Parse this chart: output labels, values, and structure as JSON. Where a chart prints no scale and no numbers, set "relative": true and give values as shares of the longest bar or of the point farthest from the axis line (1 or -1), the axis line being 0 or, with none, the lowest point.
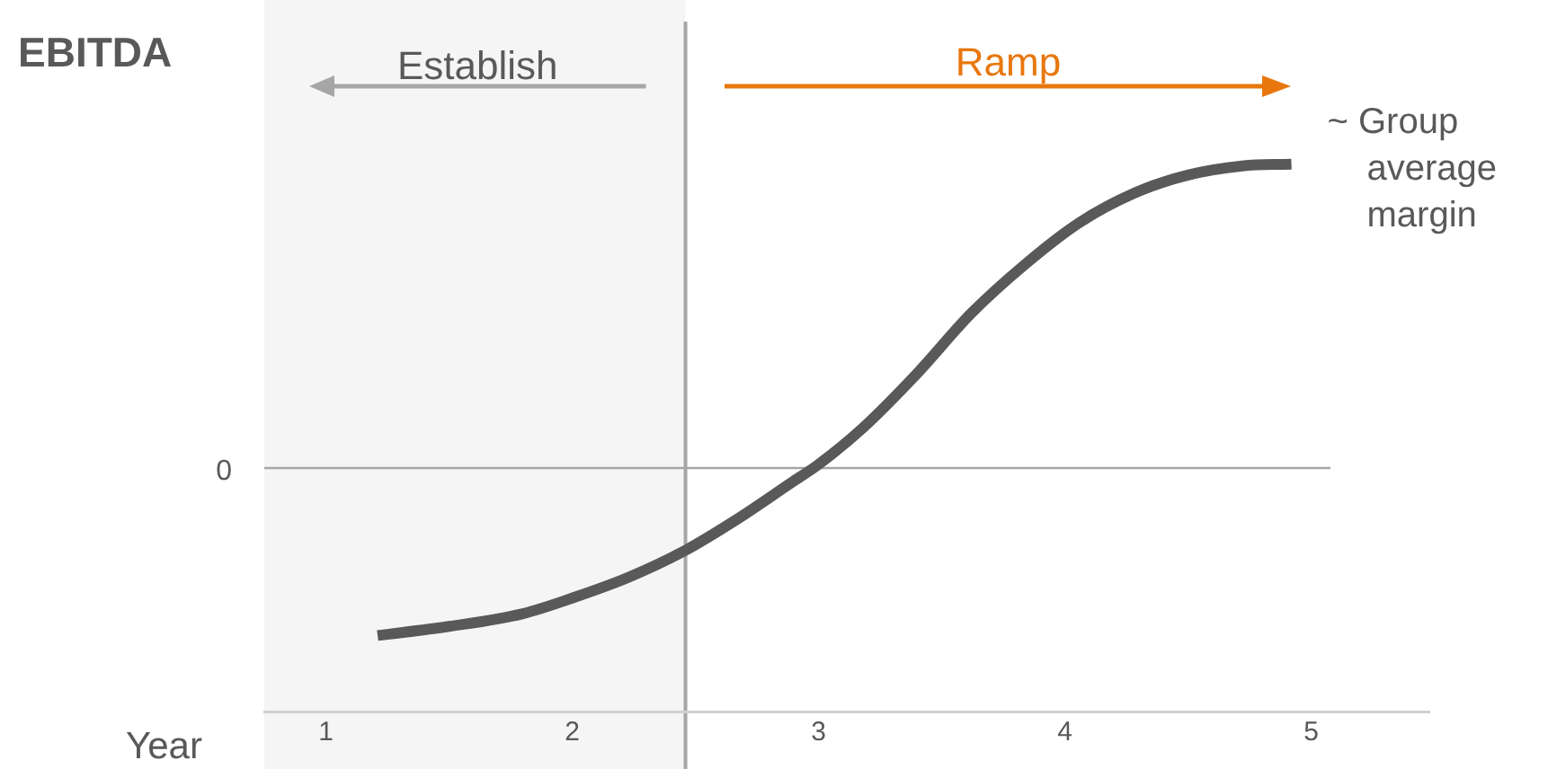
{
  "chart_data": {
    "type": "line",
    "ylabel": "EBITDA",
    "xlabel": "Year",
    "relative": true,
    "xlim": [
      0.75,
      5.48
    ],
    "xticks": [
      1,
      2,
      3,
      4,
      5
    ],
    "grid": false,
    "legend": false,
    "marker": "none",
    "line_style": "solid",
    "series": [
      {
        "color": "#595959",
        "x": [
          1.21,
          1.5,
          1.8,
          2.01,
          2.23,
          2.45,
          2.67,
          2.89,
          3.0,
          3.18,
          3.4,
          3.62,
          3.84,
          4.06,
          4.28,
          4.5,
          4.72,
          4.92
        ],
        "values": [
          -0.551,
          -0.521,
          -0.479,
          -0.425,
          -0.359,
          -0.275,
          -0.168,
          -0.048,
          0.012,
          0.132,
          0.311,
          0.509,
          0.671,
          0.808,
          0.904,
          0.964,
          0.994,
          1.0
        ]
      }
    ],
    "bands": [
      {
        "axis": "x",
        "from": 0.75,
        "to": 2.46,
        "label": "Establish",
        "color": "#f5f5f5"
      }
    ],
    "ref_lines": [
      {
        "axis": "x",
        "value": 2.46,
        "color": "#a6a6a6"
      },
      {
        "axis": "y",
        "value": 0,
        "label": "0",
        "color": "#a6a6a6"
      }
    ],
    "annotations": [
      "Ramp",
      "~ Group average margin"
    ]
  }
}
